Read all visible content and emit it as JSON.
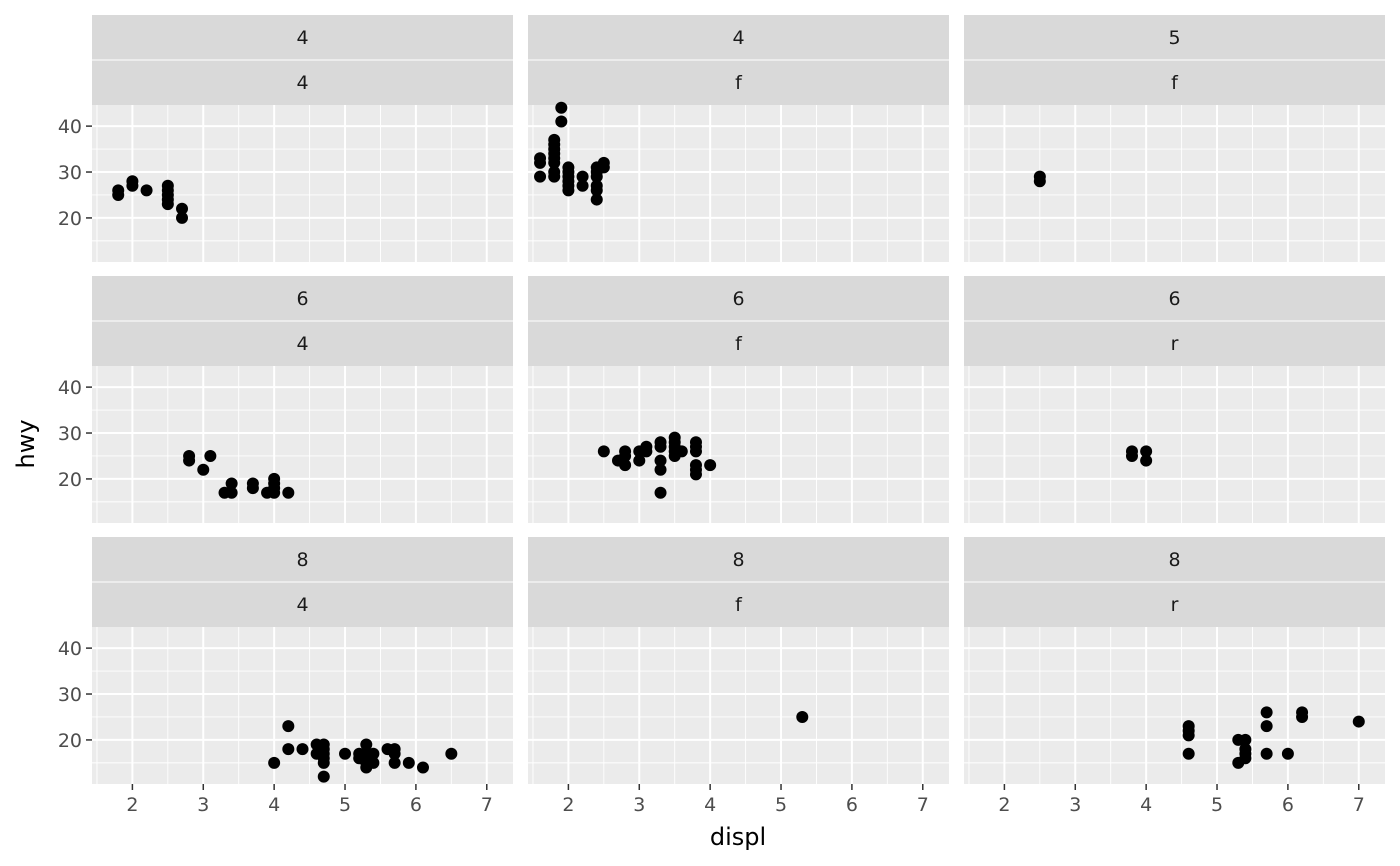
{
  "chart_data": {
    "type": "scatter",
    "xlabel": "displ",
    "ylabel": "hwy",
    "xlim": [
      1.43,
      7.37
    ],
    "ylim": [
      10.4,
      44.6
    ],
    "x_ticks": [
      2,
      3,
      4,
      5,
      6,
      7
    ],
    "y_ticks": [
      20,
      30,
      40
    ],
    "grid": true,
    "colors": {
      "panel_bg": "#ebebeb",
      "strip_bg": "#d9d9d9",
      "grid": "#ffffff",
      "point": "#000000"
    },
    "facets": [
      {
        "row": 0,
        "col": 0,
        "strip_top": "4",
        "strip_bottom": "4",
        "points": [
          [
            1.8,
            25
          ],
          [
            1.8,
            26
          ],
          [
            2.0,
            27
          ],
          [
            2.0,
            28
          ],
          [
            2.2,
            26
          ],
          [
            2.5,
            23
          ],
          [
            2.5,
            24
          ],
          [
            2.5,
            25
          ],
          [
            2.5,
            26
          ],
          [
            2.5,
            27
          ],
          [
            2.7,
            20
          ],
          [
            2.7,
            22
          ]
        ]
      },
      {
        "row": 0,
        "col": 1,
        "strip_top": "4",
        "strip_bottom": "f",
        "points": [
          [
            1.6,
            29
          ],
          [
            1.6,
            32
          ],
          [
            1.6,
            33
          ],
          [
            1.8,
            29
          ],
          [
            1.8,
            30
          ],
          [
            1.8,
            32
          ],
          [
            1.8,
            33
          ],
          [
            1.8,
            34
          ],
          [
            1.8,
            35
          ],
          [
            1.8,
            36
          ],
          [
            1.8,
            37
          ],
          [
            1.9,
            41
          ],
          [
            1.9,
            44
          ],
          [
            2.0,
            26
          ],
          [
            2.0,
            27
          ],
          [
            2.0,
            28
          ],
          [
            2.0,
            29
          ],
          [
            2.0,
            30
          ],
          [
            2.0,
            31
          ],
          [
            2.2,
            27
          ],
          [
            2.2,
            29
          ],
          [
            2.4,
            24
          ],
          [
            2.4,
            26
          ],
          [
            2.4,
            27
          ],
          [
            2.4,
            29
          ],
          [
            2.4,
            30
          ],
          [
            2.4,
            31
          ],
          [
            2.5,
            31
          ],
          [
            2.5,
            32
          ]
        ]
      },
      {
        "row": 0,
        "col": 2,
        "strip_top": "5",
        "strip_bottom": "f",
        "points": [
          [
            2.5,
            28
          ],
          [
            2.5,
            29
          ]
        ]
      },
      {
        "row": 1,
        "col": 0,
        "strip_top": "6",
        "strip_bottom": "4",
        "points": [
          [
            2.8,
            24
          ],
          [
            2.8,
            25
          ],
          [
            3.0,
            22
          ],
          [
            3.1,
            25
          ],
          [
            3.3,
            17
          ],
          [
            3.4,
            17
          ],
          [
            3.4,
            19
          ],
          [
            3.7,
            18
          ],
          [
            3.7,
            19
          ],
          [
            3.9,
            17
          ],
          [
            4.0,
            17
          ],
          [
            4.0,
            18
          ],
          [
            4.0,
            19
          ],
          [
            4.0,
            20
          ],
          [
            4.2,
            17
          ]
        ]
      },
      {
        "row": 1,
        "col": 1,
        "strip_top": "6",
        "strip_bottom": "f",
        "points": [
          [
            2.5,
            26
          ],
          [
            2.7,
            24
          ],
          [
            2.8,
            23
          ],
          [
            2.8,
            25
          ],
          [
            2.8,
            26
          ],
          [
            3.0,
            24
          ],
          [
            3.0,
            26
          ],
          [
            3.1,
            26
          ],
          [
            3.1,
            27
          ],
          [
            3.3,
            17
          ],
          [
            3.3,
            22
          ],
          [
            3.3,
            24
          ],
          [
            3.3,
            27
          ],
          [
            3.3,
            28
          ],
          [
            3.5,
            25
          ],
          [
            3.5,
            26
          ],
          [
            3.5,
            27
          ],
          [
            3.5,
            28
          ],
          [
            3.5,
            29
          ],
          [
            3.6,
            26
          ],
          [
            3.8,
            21
          ],
          [
            3.8,
            22
          ],
          [
            3.8,
            23
          ],
          [
            3.8,
            26
          ],
          [
            3.8,
            27
          ],
          [
            3.8,
            28
          ],
          [
            4.0,
            23
          ]
        ]
      },
      {
        "row": 1,
        "col": 2,
        "strip_top": "6",
        "strip_bottom": "r",
        "points": [
          [
            3.8,
            25
          ],
          [
            3.8,
            26
          ],
          [
            4.0,
            24
          ],
          [
            4.0,
            26
          ]
        ]
      },
      {
        "row": 2,
        "col": 0,
        "strip_top": "8",
        "strip_bottom": "4",
        "points": [
          [
            4.0,
            15
          ],
          [
            4.2,
            18
          ],
          [
            4.2,
            23
          ],
          [
            4.4,
            18
          ],
          [
            4.6,
            17
          ],
          [
            4.6,
            19
          ],
          [
            4.7,
            12
          ],
          [
            4.7,
            15
          ],
          [
            4.7,
            16
          ],
          [
            4.7,
            17
          ],
          [
            4.7,
            18
          ],
          [
            4.7,
            19
          ],
          [
            5.0,
            17
          ],
          [
            5.2,
            16
          ],
          [
            5.2,
            17
          ],
          [
            5.3,
            14
          ],
          [
            5.3,
            15
          ],
          [
            5.3,
            16
          ],
          [
            5.3,
            17
          ],
          [
            5.3,
            19
          ],
          [
            5.4,
            15
          ],
          [
            5.4,
            17
          ],
          [
            5.6,
            18
          ],
          [
            5.7,
            15
          ],
          [
            5.7,
            17
          ],
          [
            5.7,
            18
          ],
          [
            5.9,
            15
          ],
          [
            6.1,
            14
          ],
          [
            6.5,
            17
          ]
        ]
      },
      {
        "row": 2,
        "col": 1,
        "strip_top": "8",
        "strip_bottom": "f",
        "points": [
          [
            5.3,
            25
          ]
        ]
      },
      {
        "row": 2,
        "col": 2,
        "strip_top": "8",
        "strip_bottom": "r",
        "points": [
          [
            4.6,
            17
          ],
          [
            4.6,
            21
          ],
          [
            4.6,
            22
          ],
          [
            4.6,
            23
          ],
          [
            5.3,
            15
          ],
          [
            5.3,
            20
          ],
          [
            5.4,
            16
          ],
          [
            5.4,
            17
          ],
          [
            5.4,
            18
          ],
          [
            5.4,
            20
          ],
          [
            5.7,
            17
          ],
          [
            5.7,
            23
          ],
          [
            5.7,
            26
          ],
          [
            6.0,
            17
          ],
          [
            6.2,
            25
          ],
          [
            6.2,
            26
          ],
          [
            7.0,
            24
          ]
        ]
      }
    ]
  }
}
